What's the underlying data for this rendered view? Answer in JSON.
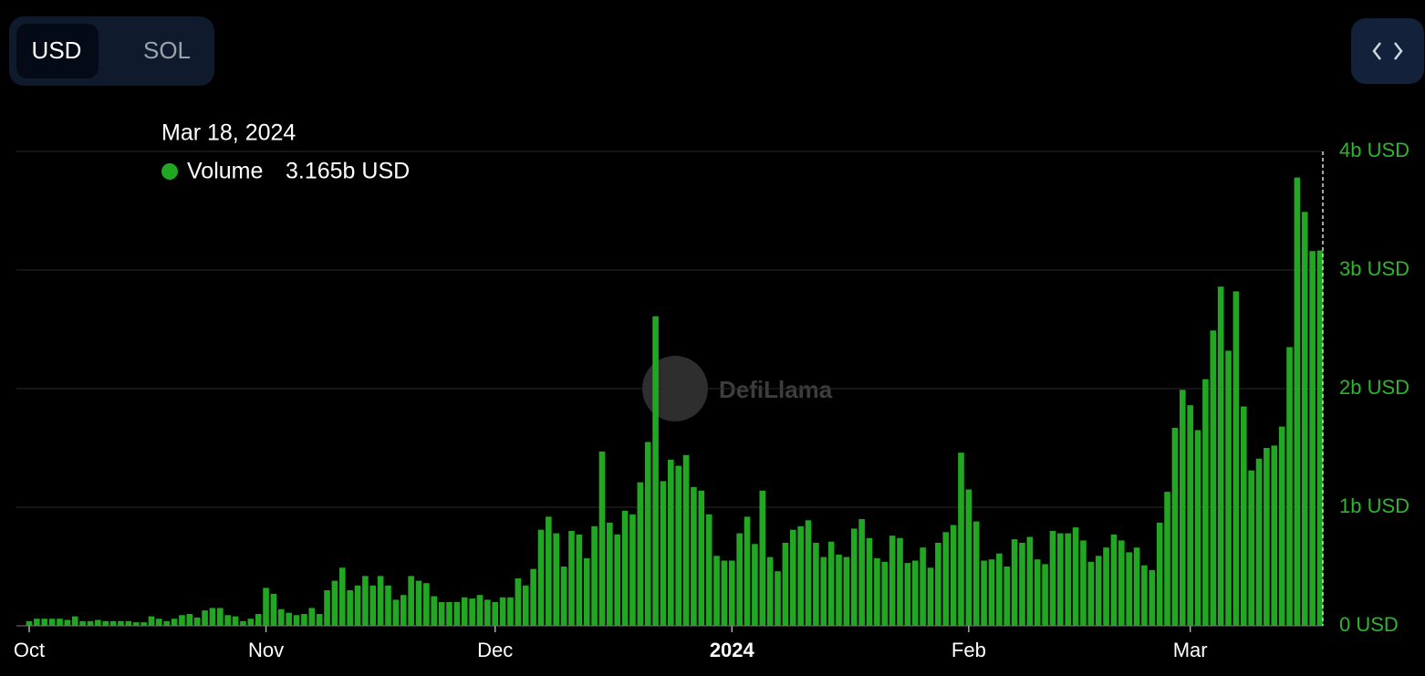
{
  "toggle": {
    "options": [
      "USD",
      "SOL"
    ]
  },
  "watermark": "DefiLlama",
  "tooltip": {
    "title": "Mar 18, 2024",
    "value_label": "3.165b USD"
  },
  "chart_data": {
    "type": "bar",
    "categories": [
      "Oct",
      null,
      null,
      null,
      null,
      null,
      null,
      null,
      null,
      null,
      null,
      null,
      null,
      null,
      null,
      null,
      null,
      null,
      null,
      null,
      null,
      null,
      null,
      null,
      null,
      null,
      null,
      null,
      null,
      null,
      null,
      "Nov",
      null,
      null,
      null,
      null,
      null,
      null,
      null,
      null,
      null,
      null,
      null,
      null,
      null,
      null,
      null,
      null,
      null,
      null,
      null,
      null,
      null,
      null,
      null,
      null,
      null,
      null,
      null,
      null,
      null,
      "Dec",
      null,
      null,
      null,
      null,
      null,
      null,
      null,
      null,
      null,
      null,
      null,
      null,
      null,
      null,
      null,
      null,
      null,
      null,
      null,
      null,
      null,
      null,
      null,
      null,
      null,
      null,
      null,
      null,
      null,
      null,
      "2024",
      null,
      null,
      null,
      null,
      null,
      null,
      null,
      null,
      null,
      null,
      null,
      null,
      null,
      null,
      null,
      null,
      null,
      null,
      null,
      null,
      null,
      null,
      null,
      null,
      null,
      null,
      null,
      null,
      null,
      null,
      "Feb",
      null,
      null,
      null,
      null,
      null,
      null,
      null,
      null,
      null,
      null,
      null,
      null,
      null,
      null,
      null,
      null,
      null,
      null,
      null,
      null,
      null,
      null,
      null,
      null,
      null,
      null,
      null,
      null,
      "Mar",
      null,
      null,
      null,
      null,
      null,
      null,
      null,
      null,
      null,
      null,
      null,
      null,
      null,
      null,
      null,
      null,
      null
    ],
    "series": [
      {
        "name": "Volume",
        "color": "#22a722",
        "values": [
          0.04,
          0.06,
          0.06,
          0.06,
          0.06,
          0.05,
          0.08,
          0.04,
          0.04,
          0.05,
          0.04,
          0.04,
          0.04,
          0.04,
          0.03,
          0.03,
          0.08,
          0.06,
          0.04,
          0.06,
          0.09,
          0.1,
          0.07,
          0.13,
          0.15,
          0.15,
          0.09,
          0.08,
          0.04,
          0.06,
          0.1,
          0.32,
          0.27,
          0.14,
          0.11,
          0.09,
          0.1,
          0.15,
          0.1,
          0.3,
          0.38,
          0.49,
          0.3,
          0.34,
          0.42,
          0.34,
          0.42,
          0.34,
          0.22,
          0.26,
          0.42,
          0.38,
          0.36,
          0.25,
          0.2,
          0.2,
          0.2,
          0.24,
          0.23,
          0.26,
          0.22,
          0.2,
          0.24,
          0.24,
          0.4,
          0.34,
          0.48,
          0.81,
          0.92,
          0.78,
          0.5,
          0.8,
          0.77,
          0.57,
          0.84,
          1.47,
          0.87,
          0.77,
          0.97,
          0.94,
          1.21,
          1.55,
          2.61,
          1.22,
          1.4,
          1.35,
          1.44,
          1.17,
          1.14,
          0.94,
          0.59,
          0.55,
          0.55,
          0.78,
          0.92,
          0.69,
          1.14,
          0.58,
          0.46,
          0.7,
          0.81,
          0.84,
          0.89,
          0.7,
          0.58,
          0.71,
          0.6,
          0.58,
          0.82,
          0.9,
          0.74,
          0.57,
          0.54,
          0.76,
          0.74,
          0.53,
          0.55,
          0.66,
          0.49,
          0.7,
          0.79,
          0.85,
          1.46,
          1.15,
          0.88,
          0.55,
          0.56,
          0.61,
          0.5,
          0.73,
          0.7,
          0.75,
          0.56,
          0.52,
          0.8,
          0.78,
          0.78,
          0.83,
          0.72,
          0.54,
          0.59,
          0.66,
          0.77,
          0.72,
          0.62,
          0.66,
          0.51,
          0.47,
          0.87,
          1.13,
          1.67,
          1.99,
          1.86,
          1.65,
          2.08,
          2.49,
          2.86,
          2.32,
          2.82,
          1.85,
          1.31,
          1.41,
          1.5,
          1.52,
          1.68,
          2.35,
          3.78,
          3.49,
          3.16,
          3.165
        ]
      }
    ],
    "ylim": [
      0,
      4
    ],
    "yticks": [
      {
        "value": 0,
        "label": "0 USD"
      },
      {
        "value": 1,
        "label": "1b USD"
      },
      {
        "value": 2,
        "label": "2b USD"
      },
      {
        "value": 3,
        "label": "3b USD"
      },
      {
        "value": 4,
        "label": "4b USD"
      }
    ],
    "grid": true,
    "tick_color": "#2fb52f"
  }
}
